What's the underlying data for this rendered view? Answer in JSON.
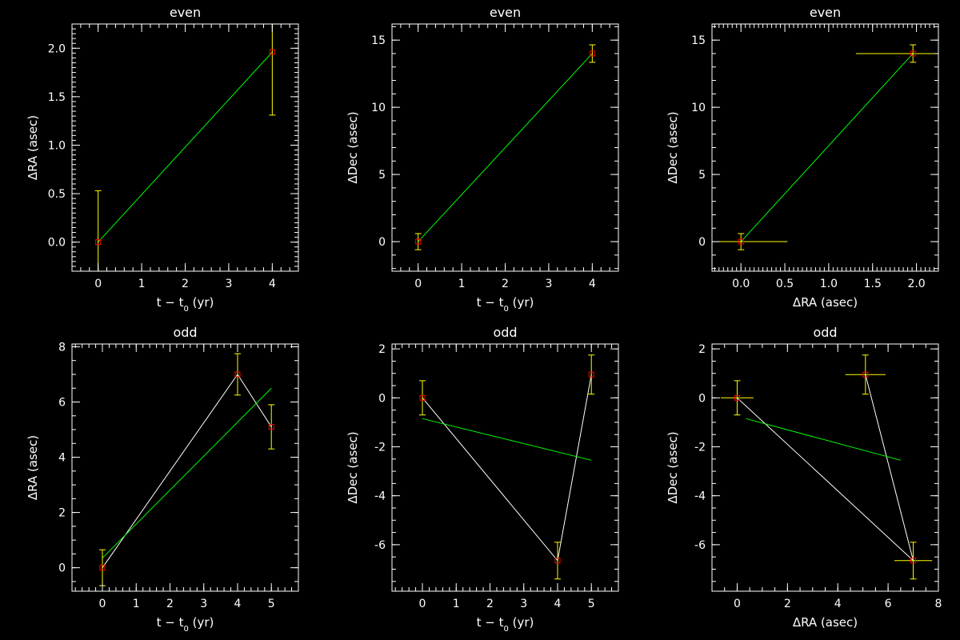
{
  "colors": {
    "background": "#000000",
    "axes": "#ffffff",
    "points": "#ff0000",
    "errorbars": "#ffff00",
    "fit": "#00ff00",
    "connect": "#ffffff"
  },
  "chart_data": [
    {
      "type": "scatter",
      "title": "even",
      "xlabel": "t − t0 (yr)",
      "ylabel": "ΔRA (asec)",
      "xlim": [
        -0.6,
        4.6
      ],
      "ylim": [
        -0.3,
        2.25
      ],
      "xticks": [
        0,
        1,
        2,
        3,
        4
      ],
      "xticklabels": [
        "0",
        "1",
        "2",
        "3",
        "4"
      ],
      "yticks": [
        0,
        0.5,
        1,
        1.5,
        2
      ],
      "yticklabels": [
        "0.0",
        "0.5",
        "1.0",
        "1.5",
        "2.0"
      ],
      "points": [
        {
          "x": 0,
          "y": 0,
          "yerr": 0.53
        },
        {
          "x": 4,
          "y": 1.96,
          "yerr": 0.65
        }
      ],
      "connect": false,
      "fit": [
        [
          0,
          0
        ],
        [
          4,
          1.96
        ]
      ],
      "grid": false,
      "legend": "none"
    },
    {
      "type": "scatter",
      "title": "even",
      "xlabel": "t − t0 (yr)",
      "ylabel": "ΔDec (asec)",
      "xlim": [
        -0.6,
        4.6
      ],
      "ylim": [
        -2.2,
        16.2
      ],
      "xticks": [
        0,
        1,
        2,
        3,
        4
      ],
      "xticklabels": [
        "0",
        "1",
        "2",
        "3",
        "4"
      ],
      "yticks": [
        0,
        5,
        10,
        15
      ],
      "yticklabels": [
        "0",
        "5",
        "10",
        "15"
      ],
      "points": [
        {
          "x": 0,
          "y": 0,
          "yerr": 0.6
        },
        {
          "x": 4,
          "y": 14,
          "yerr": 0.65
        }
      ],
      "connect": false,
      "fit": [
        [
          0,
          0
        ],
        [
          4,
          14
        ]
      ],
      "grid": false,
      "legend": "none"
    },
    {
      "type": "scatter",
      "title": "even",
      "xlabel": "ΔRA (asec)",
      "ylabel": "ΔDec (asec)",
      "xlim": [
        -0.33,
        2.25
      ],
      "ylim": [
        -2.2,
        16.2
      ],
      "xticks": [
        0,
        0.5,
        1,
        1.5,
        2
      ],
      "xticklabels": [
        "0.0",
        "0.5",
        "1.0",
        "1.5",
        "2.0"
      ],
      "yticks": [
        0,
        5,
        10,
        15
      ],
      "yticklabels": [
        "0",
        "5",
        "10",
        "15"
      ],
      "points": [
        {
          "x": 0,
          "y": 0,
          "xerr": 0.53,
          "yerr": 0.6
        },
        {
          "x": 1.96,
          "y": 14,
          "xerr": 0.65,
          "yerr": 0.65
        }
      ],
      "connect": false,
      "fit": [
        [
          0,
          0
        ],
        [
          1.96,
          14
        ]
      ],
      "grid": false,
      "legend": "none"
    },
    {
      "type": "scatter",
      "title": "odd",
      "xlabel": "t − t0 (yr)",
      "ylabel": "ΔRA (asec)",
      "xlim": [
        -0.9,
        5.8
      ],
      "ylim": [
        -0.85,
        8.1
      ],
      "xticks": [
        0,
        1,
        2,
        3,
        4,
        5
      ],
      "xticklabels": [
        "0",
        "1",
        "2",
        "3",
        "4",
        "5"
      ],
      "yticks": [
        0,
        2,
        4,
        6,
        8
      ],
      "yticklabels": [
        "0",
        "2",
        "4",
        "6",
        "8"
      ],
      "points": [
        {
          "x": 0,
          "y": 0,
          "yerr": 0.65
        },
        {
          "x": 4,
          "y": 7.0,
          "yerr": 0.75
        },
        {
          "x": 5,
          "y": 5.1,
          "yerr": 0.8
        }
      ],
      "connect": true,
      "fit": [
        [
          0,
          0.35
        ],
        [
          5,
          6.5
        ]
      ],
      "grid": false,
      "legend": "none"
    },
    {
      "type": "scatter",
      "title": "odd",
      "xlabel": "t − t0 (yr)",
      "ylabel": "ΔDec (asec)",
      "xlim": [
        -0.9,
        5.8
      ],
      "ylim": [
        -7.9,
        2.2
      ],
      "xticks": [
        0,
        1,
        2,
        3,
        4,
        5
      ],
      "xticklabels": [
        "0",
        "1",
        "2",
        "3",
        "4",
        "5"
      ],
      "yticks": [
        -6,
        -4,
        -2,
        0,
        2
      ],
      "yticklabels": [
        "-6",
        "-4",
        "-2",
        "0",
        "2"
      ],
      "points": [
        {
          "x": 0,
          "y": 0,
          "yerr": 0.7
        },
        {
          "x": 4,
          "y": -6.65,
          "yerr": 0.75
        },
        {
          "x": 5,
          "y": 0.95,
          "yerr": 0.8
        }
      ],
      "connect": true,
      "fit": [
        [
          0,
          -0.85
        ],
        [
          5,
          -2.55
        ]
      ],
      "grid": false,
      "legend": "none"
    },
    {
      "type": "scatter",
      "title": "odd",
      "xlabel": "ΔRA (asec)",
      "ylabel": "ΔDec (asec)",
      "xlim": [
        -1.0,
        8.0
      ],
      "ylim": [
        -7.9,
        2.2
      ],
      "xticks": [
        0,
        2,
        4,
        6,
        8
      ],
      "xticklabels": [
        "0",
        "2",
        "4",
        "6",
        "8"
      ],
      "yticks": [
        -6,
        -4,
        -2,
        0,
        2
      ],
      "yticklabels": [
        "-6",
        "-4",
        "-2",
        "0",
        "2"
      ],
      "points": [
        {
          "x": 0,
          "y": 0,
          "xerr": 0.65,
          "yerr": 0.7
        },
        {
          "x": 7.0,
          "y": -6.65,
          "xerr": 0.75,
          "yerr": 0.75
        },
        {
          "x": 5.1,
          "y": 0.95,
          "xerr": 0.8,
          "yerr": 0.8
        }
      ],
      "connect": true,
      "fit": [
        [
          0.35,
          -0.85
        ],
        [
          6.5,
          -2.55
        ]
      ],
      "grid": false,
      "legend": "none"
    }
  ]
}
